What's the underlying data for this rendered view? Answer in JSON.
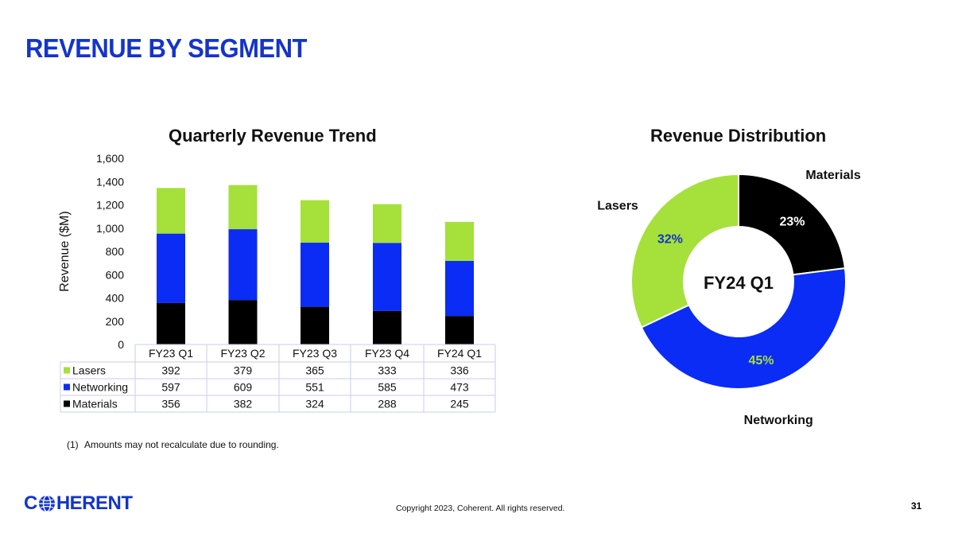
{
  "slide": {
    "title": "REVENUE BY SEGMENT",
    "footnote_number": "(1)",
    "footnote_text": "Amounts may not recalculate due to rounding.",
    "copyright": "Copyright 2023, Coherent. All rights reserved.",
    "page_number": "31",
    "logo_left": "C",
    "logo_right": "HERENT",
    "brand_color": "#1434cb"
  },
  "chart_data": [
    {
      "type": "bar",
      "stacked": true,
      "title": "Quarterly Revenue Trend",
      "xlabel": "",
      "ylabel": "Revenue ($M)",
      "ylim": [
        0,
        1600
      ],
      "yticks": [
        0,
        200,
        400,
        600,
        800,
        1000,
        1200,
        1400,
        1600
      ],
      "ytick_labels": [
        "0",
        "200",
        "400",
        "600",
        "800",
        "1,000",
        "1,200",
        "1,400",
        "1,600"
      ],
      "categories": [
        "FY23 Q1",
        "FY23 Q2",
        "FY23 Q3",
        "FY23 Q4",
        "FY24 Q1"
      ],
      "series": [
        {
          "name": "Materials",
          "color": "#000000",
          "values": [
            356,
            382,
            324,
            288,
            245
          ]
        },
        {
          "name": "Networking",
          "color": "#0a2cf5",
          "values": [
            597,
            609,
            551,
            585,
            473
          ]
        },
        {
          "name": "Lasers",
          "color": "#a6e03b",
          "values": [
            392,
            379,
            365,
            333,
            336
          ]
        }
      ],
      "table_order": [
        "Lasers",
        "Networking",
        "Materials"
      ]
    },
    {
      "type": "pie",
      "donut": true,
      "title": "Revenue Distribution",
      "center_label": "FY24 Q1",
      "slices": [
        {
          "name": "Materials",
          "value": 23,
          "label": "23%",
          "color": "#000000",
          "label_color": "#ffffff"
        },
        {
          "name": "Networking",
          "value": 45,
          "label": "45%",
          "color": "#0a2cf5",
          "label_color": "#a6e03b"
        },
        {
          "name": "Lasers",
          "value": 32,
          "label": "32%",
          "color": "#a6e03b",
          "label_color": "#1434cb"
        }
      ]
    }
  ]
}
